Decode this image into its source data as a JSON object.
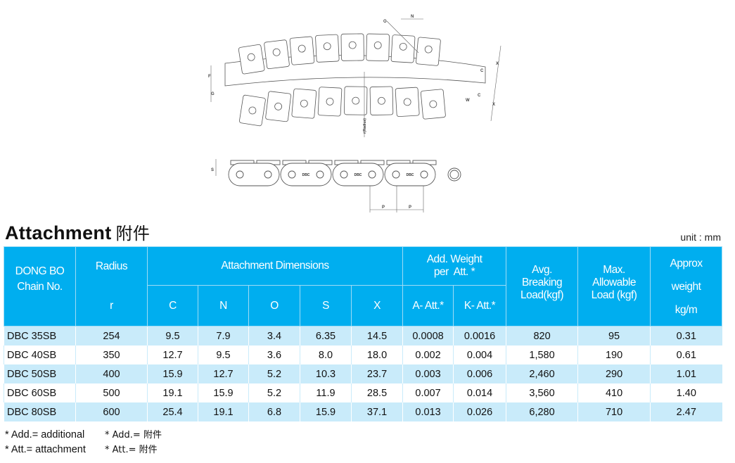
{
  "diagram": {
    "labels": {
      "O": "O",
      "N": "N",
      "X1": "X",
      "C1": "C",
      "C2": "C",
      "X2": "X",
      "W": "W",
      "F": "F",
      "G": "G",
      "radius": "r(Radius)",
      "S": "S",
      "P1": "P",
      "P2": "P"
    },
    "plate_text": "DBC"
  },
  "title": {
    "en": "Attachment",
    "cn": "附件"
  },
  "unit": "unit : mm",
  "table": {
    "header": {
      "chain_no": [
        "DONG BO",
        "Chain No."
      ],
      "radius": "Radius",
      "radius_sub": "r",
      "dims": "Attachment Dimensions",
      "dim_cols": [
        "C",
        "N",
        "O",
        "S",
        "X"
      ],
      "add_weight": [
        "Add. Weight",
        "per  Att. *"
      ],
      "add_cols": [
        "A- Att.*",
        "K- Att.*"
      ],
      "breaking": [
        "Avg.",
        "Breaking",
        "Load(kgf)"
      ],
      "allowable": [
        "Max.",
        "Allowable",
        "Load (kgf)"
      ],
      "approx": [
        "Approx",
        "weight",
        "kg/m"
      ]
    },
    "rows": [
      [
        "DBC 35SB",
        "254",
        "9.5",
        "7.9",
        "3.4",
        "6.35",
        "14.5",
        "0.0008",
        "0.0016",
        "820",
        "95",
        "0.31"
      ],
      [
        "DBC 40SB",
        "350",
        "12.7",
        "9.5",
        "3.6",
        "8.0",
        "18.0",
        "0.002",
        "0.004",
        "1,580",
        "190",
        "0.61"
      ],
      [
        "DBC 50SB",
        "400",
        "15.9",
        "12.7",
        "5.2",
        "10.3",
        "23.7",
        "0.003",
        "0.006",
        "2,460",
        "290",
        "1.01"
      ],
      [
        "DBC 60SB",
        "500",
        "19.1",
        "15.9",
        "5.2",
        "11.9",
        "28.5",
        "0.007",
        "0.014",
        "3,560",
        "410",
        "1.40"
      ],
      [
        "DBC 80SB",
        "600",
        "25.4",
        "19.1",
        "6.8",
        "15.9",
        "37.1",
        "0.013",
        "0.026",
        "6,280",
        "710",
        "2.47"
      ]
    ]
  },
  "notes": [
    {
      "en": "* Add.= additional",
      "cn": "* Add.= 附件"
    },
    {
      "en": "* Att.= attachment",
      "cn": "* Att.= 附件"
    }
  ],
  "colors": {
    "header": "#00aeef",
    "row_alt": "#c9ebfa"
  }
}
